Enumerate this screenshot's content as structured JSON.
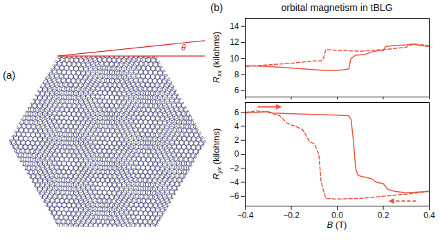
{
  "diagram": {
    "panel_label": "(a)",
    "angle_label": "θ"
  },
  "chart_data": [
    {
      "type": "line",
      "panel_label": "(b)",
      "title": "orbital magnetism in tBLG",
      "ylabel": "Rxx (kilohms)",
      "xlim": [
        -0.4,
        0.4
      ],
      "xticks": [
        {
          "value": -0.4,
          "label": "−0.4"
        },
        {
          "value": -0.2,
          "label": "−0.2"
        },
        {
          "value": 0,
          "label": "0.0"
        },
        {
          "value": 0.2,
          "label": "0.2"
        },
        {
          "value": 0.4,
          "label": "0.4"
        }
      ],
      "ylim": [
        5.2,
        15
      ],
      "yticks": [
        6,
        8,
        10,
        12,
        14
      ],
      "tick_labels": "y",
      "series": [
        {
          "color": "#e8553e",
          "line_style": "solid",
          "x": [
            -0.4,
            -0.3,
            -0.2,
            -0.1,
            -0.05,
            0,
            0.03,
            0.05,
            0.06,
            0.08,
            0.12,
            0.15,
            0.18,
            0.2,
            0.21,
            0.25,
            0.3,
            0.33,
            0.36,
            0.4
          ],
          "values": [
            9.1,
            9.0,
            8.8,
            8.6,
            8.5,
            8.5,
            8.6,
            8.7,
            10.0,
            10.4,
            10.5,
            10.8,
            11.0,
            11.0,
            11.5,
            11.6,
            11.7,
            11.8,
            11.6,
            11.5
          ]
        },
        {
          "color": "#e8553e",
          "line_style": "dashed",
          "x": [
            0.4,
            0.33,
            0.3,
            0.2,
            0.1,
            0,
            -0.05,
            -0.06,
            -0.07,
            -0.1,
            -0.2,
            -0.3,
            -0.4
          ],
          "values": [
            11.6,
            11.8,
            11.4,
            11.1,
            10.9,
            11.0,
            11.1,
            10.0,
            9.7,
            9.7,
            9.4,
            9.2,
            9.0
          ]
        }
      ]
    },
    {
      "type": "line",
      "ylabel": "Ryx (kilohms)",
      "xlabel": "B (T)",
      "xlim": [
        -0.4,
        0.4
      ],
      "xticks": [
        {
          "value": -0.4,
          "label": "−0.4"
        },
        {
          "value": -0.2,
          "label": "−0.2"
        },
        {
          "value": 0,
          "label": "0.0"
        },
        {
          "value": 0.2,
          "label": "0.2"
        },
        {
          "value": 0.4,
          "label": "0.4"
        }
      ],
      "ylim": [
        -7.4,
        7.4
      ],
      "yticks": [
        {
          "value": -6,
          "label": "−6"
        },
        {
          "value": -4,
          "label": "−4"
        },
        {
          "value": -2,
          "label": "−2"
        },
        0,
        2,
        4,
        6
      ],
      "series": [
        {
          "color": "#e8553e",
          "line_style": "solid",
          "x": [
            -0.4,
            -0.3,
            -0.28,
            -0.2,
            -0.1,
            0,
            0.05,
            0.06,
            0.07,
            0.08,
            0.09,
            0.1,
            0.15,
            0.17,
            0.2,
            0.22,
            0.25,
            0.3,
            0.35,
            0.4
          ],
          "values": [
            5.9,
            6.1,
            5.9,
            5.8,
            5.7,
            5.6,
            5.5,
            5.0,
            2.0,
            -2.0,
            -3.0,
            -3.1,
            -3.5,
            -4.0,
            -4.2,
            -5.0,
            -5.3,
            -5.5,
            -5.4,
            -5.3
          ]
        },
        {
          "color": "#e8553e",
          "line_style": "dashed",
          "x": [
            0.4,
            0.3,
            0.2,
            0.1,
            0,
            -0.05,
            -0.07,
            -0.08,
            -0.1,
            -0.12,
            -0.15,
            -0.18,
            -0.2,
            -0.22,
            -0.25,
            -0.3,
            -0.35,
            -0.4
          ],
          "values": [
            -5.3,
            -5.7,
            -6.0,
            -6.3,
            -6.4,
            -6.3,
            -4.0,
            0.0,
            1.5,
            1.8,
            3.5,
            4.0,
            4.2,
            4.5,
            5.5,
            6.0,
            6.2,
            6.0
          ]
        }
      ]
    }
  ]
}
